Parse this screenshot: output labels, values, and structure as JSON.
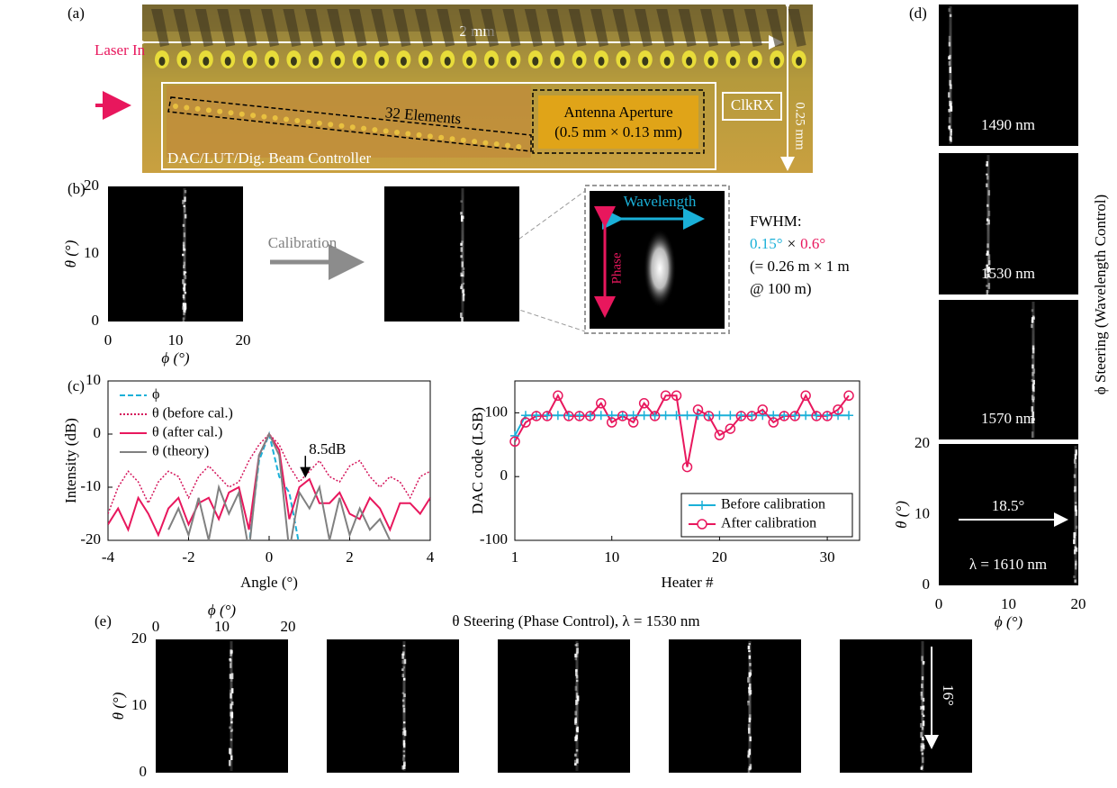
{
  "panel_labels": [
    "(a)",
    "(b)",
    "(c)",
    "(d)",
    "(e)"
  ],
  "chip": {
    "width_label": "2 mm",
    "height_label": "0.25 mm",
    "laser": "Laser In",
    "elements": "32 Elements",
    "aperture": [
      "Antenna Aperture",
      "(0.5 mm × 0.13 mm)"
    ],
    "clock": "ClkRX",
    "controller": "DAC/LUT/Dig. Beam Controller"
  },
  "calibration": {
    "arrow_label": "Calibration",
    "zoom_x_label": "Wavelength",
    "zoom_y_label": "Phase",
    "fwhm_title": "FWHM:",
    "fwhm_x": "0.15°",
    "fwhm_times": "×",
    "fwhm_y": "0.6°",
    "fwhm_note": [
      "(= 0.26 m × 1 m",
      "@ 100 m)"
    ]
  },
  "far_field_axes": {
    "x_label": "ϕ (°)",
    "y_label": "θ (°)",
    "xticks": [
      0,
      10,
      20
    ],
    "yticks": [
      0,
      10,
      20
    ]
  },
  "wavelength_steering": {
    "title": "ϕ Steering (Wavelength Control)",
    "wavelengths": [
      "1490 nm",
      "1530 nm",
      "1570 nm",
      "λ = 1610 nm"
    ],
    "shift_label": "18.5°"
  },
  "phase_steering": {
    "title": "θ Steering (Phase Control), λ = 1530 nm",
    "shift_label": "16°"
  },
  "chart_data": [
    {
      "type": "line",
      "x_label": "Angle (°)",
      "y_label": "Intensity (dB)",
      "xlim": [
        -4,
        4
      ],
      "ylim": [
        -20,
        10
      ],
      "xticks": [
        -4,
        -2,
        0,
        2,
        4
      ],
      "yticks": [
        -20,
        -10,
        0,
        10
      ],
      "legend": "upper left",
      "x": [
        -4,
        -3.75,
        -3.5,
        -3.25,
        -3,
        -2.75,
        -2.5,
        -2.25,
        -2,
        -1.75,
        -1.5,
        -1.25,
        -1,
        -0.75,
        -0.5,
        -0.25,
        0,
        0.25,
        0.5,
        0.75,
        1,
        1.25,
        1.5,
        1.75,
        2,
        2.25,
        2.5,
        2.75,
        3,
        3.25,
        3.5,
        3.75,
        4
      ],
      "series": [
        {
          "name": "ϕ",
          "color": "#1ab0d8",
          "dash": "dashed",
          "values": [
            null,
            null,
            null,
            null,
            null,
            null,
            null,
            null,
            null,
            null,
            null,
            null,
            null,
            null,
            -21,
            -5,
            0,
            -8,
            -11,
            -21,
            null,
            null,
            null,
            null,
            null,
            null,
            null,
            null,
            null,
            null,
            null,
            null,
            null
          ]
        },
        {
          "name": "θ (before cal.)",
          "color": "#d4145a",
          "dash": "dotted",
          "values": [
            -15,
            -10,
            -7,
            -9,
            -13,
            -9,
            -7,
            -8,
            -12,
            -8,
            -6,
            -8,
            -10,
            -9,
            -5,
            -2,
            0,
            -2,
            -6,
            -9,
            -7,
            -5,
            -8,
            -9,
            -6,
            -5,
            -8,
            -10,
            -8,
            -9,
            -12,
            -8,
            -7
          ]
        },
        {
          "name": "θ (after cal.)",
          "color": "#e8175d",
          "dash": "solid",
          "values": [
            -17,
            -14,
            -18,
            -12,
            -15,
            -19,
            -14,
            -12,
            -17,
            -13,
            -12,
            -16,
            -11,
            -10,
            -18,
            -4,
            0,
            -3,
            -16,
            -10,
            -8.5,
            -13,
            -13,
            -11,
            -15,
            -16,
            -12,
            -14,
            -18,
            -13,
            -13,
            -15,
            -12
          ]
        },
        {
          "name": "θ (theory)",
          "color": "#808080",
          "dash": "solid",
          "values": [
            null,
            null,
            null,
            null,
            null,
            null,
            -18,
            -14,
            -19,
            -12,
            -20,
            -10,
            -15,
            -11,
            -22,
            -4,
            0,
            -4,
            -22,
            -11,
            -14,
            -10,
            -20,
            -12,
            -19,
            -14,
            -18,
            -16,
            -20,
            null,
            null,
            null,
            null
          ]
        }
      ],
      "annotations": [
        {
          "text": "8.5dB",
          "x": 0.9,
          "y": -8.5
        }
      ]
    },
    {
      "type": "line",
      "x_label": "Heater #",
      "y_label": "DAC code (LSB)",
      "xlim": [
        1,
        33
      ],
      "ylim": [
        -100,
        150
      ],
      "xticks": [
        1,
        10,
        20,
        30
      ],
      "yticks": [
        -100,
        0,
        100
      ],
      "legend": "lower right",
      "x": [
        1,
        2,
        3,
        4,
        5,
        6,
        7,
        8,
        9,
        10,
        11,
        12,
        13,
        14,
        15,
        16,
        17,
        18,
        19,
        20,
        21,
        22,
        23,
        24,
        25,
        26,
        27,
        28,
        29,
        30,
        31,
        32
      ],
      "series": [
        {
          "name": "Before calibration",
          "color": "#1ab0d8",
          "marker": "plus",
          "values": [
            64,
            96,
            96,
            96,
            96,
            96,
            96,
            96,
            96,
            96,
            96,
            96,
            96,
            96,
            96,
            96,
            96,
            96,
            96,
            96,
            96,
            96,
            96,
            96,
            96,
            96,
            96,
            96,
            96,
            96,
            96,
            96
          ]
        },
        {
          "name": "After calibration",
          "color": "#e8175d",
          "marker": "circle",
          "values": [
            55,
            85,
            95,
            95,
            127,
            95,
            95,
            95,
            115,
            85,
            95,
            85,
            115,
            95,
            127,
            127,
            15,
            105,
            95,
            65,
            75,
            95,
            95,
            105,
            85,
            95,
            95,
            127,
            95,
            95,
            105,
            127
          ]
        }
      ]
    }
  ]
}
